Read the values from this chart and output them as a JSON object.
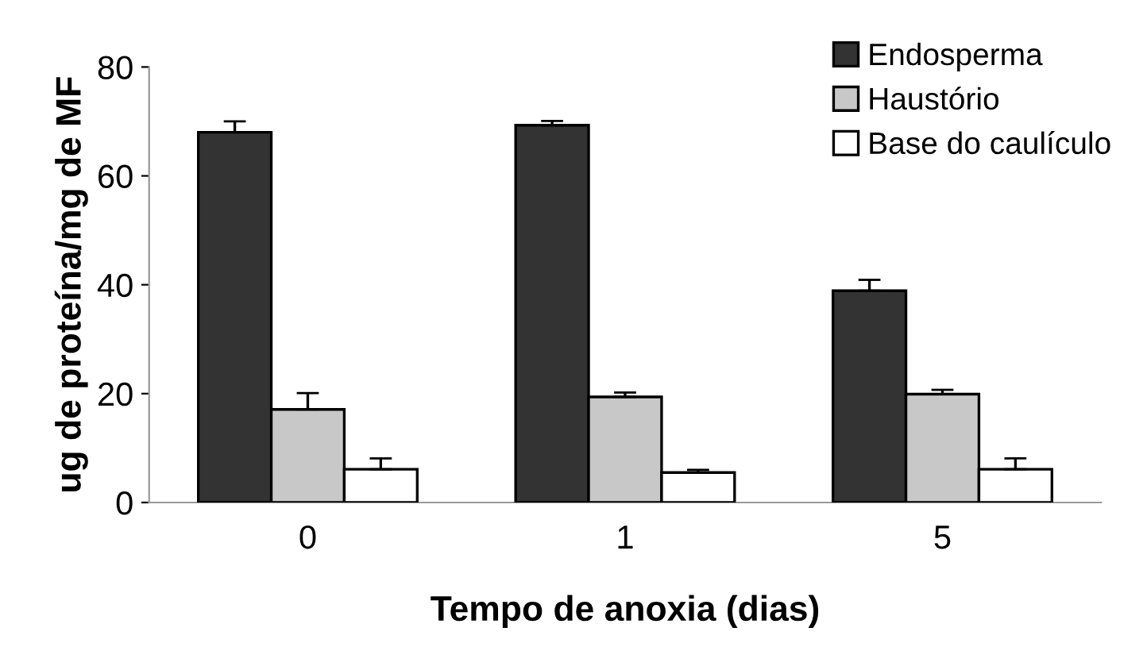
{
  "chart_data": {
    "type": "bar",
    "xlabel": "Tempo de anoxia (dias)",
    "ylabel": "ug de proteína/mg de MF",
    "categories": [
      "0",
      "1",
      "5"
    ],
    "series": [
      {
        "name": "Endosperma",
        "color": "#333333",
        "values": [
          68,
          69.3,
          38.9
        ],
        "errors": [
          2,
          0.8,
          2
        ]
      },
      {
        "name": "Haustório",
        "color": "#c8c8c8",
        "values": [
          17.1,
          19.4,
          19.9
        ],
        "errors": [
          3,
          0.8,
          0.8
        ]
      },
      {
        "name": "Base do caulículo",
        "color": "#ffffff",
        "values": [
          6.1,
          5.5,
          6.1
        ],
        "errors": [
          2,
          0.5,
          2
        ]
      }
    ],
    "ylim": [
      0,
      80
    ],
    "yticks": [
      0,
      20,
      40,
      60,
      80
    ],
    "grid": false,
    "legend": "top right"
  }
}
